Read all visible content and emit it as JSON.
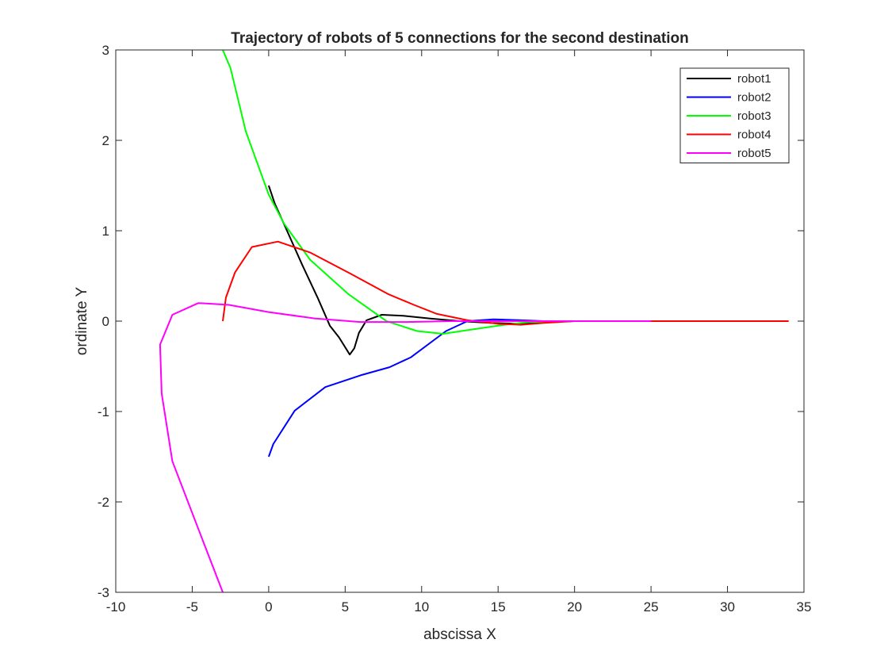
{
  "chart_data": {
    "type": "line",
    "title": "Trajectory of robots of 5 connections for the second destination",
    "xlabel": "abscissa X",
    "ylabel": "ordinate Y",
    "xlim": [
      -10,
      35
    ],
    "ylim": [
      -3,
      3
    ],
    "xticks": [
      "-10",
      "-5",
      "0",
      "5",
      "10",
      "15",
      "20",
      "25",
      "30",
      "35"
    ],
    "yticks": [
      "-3",
      "-2",
      "-1",
      "0",
      "1",
      "2",
      "3"
    ],
    "grid": false,
    "legend_position": "top-right",
    "series": [
      {
        "name": "robot1",
        "color": "#000000",
        "points": [
          [
            0.0,
            1.5
          ],
          [
            0.4,
            1.3
          ],
          [
            1.2,
            1.0
          ],
          [
            2.2,
            0.62
          ],
          [
            3.2,
            0.26
          ],
          [
            4.0,
            -0.05
          ],
          [
            4.6,
            -0.18
          ],
          [
            5.3,
            -0.37
          ],
          [
            5.6,
            -0.3
          ],
          [
            5.9,
            -0.13
          ],
          [
            6.4,
            0.01
          ],
          [
            7.4,
            0.07
          ],
          [
            8.8,
            0.06
          ],
          [
            10.5,
            0.03
          ],
          [
            12.5,
            0.0
          ],
          [
            14.5,
            -0.02
          ],
          [
            16.5,
            -0.03
          ],
          [
            18.0,
            -0.01
          ],
          [
            20.0,
            0.0
          ]
        ]
      },
      {
        "name": "robot2",
        "color": "#0000ff",
        "points": [
          [
            0.0,
            -1.5
          ],
          [
            0.3,
            -1.36
          ],
          [
            1.7,
            -0.99
          ],
          [
            3.7,
            -0.73
          ],
          [
            6.0,
            -0.6
          ],
          [
            7.9,
            -0.51
          ],
          [
            9.3,
            -0.4
          ],
          [
            11.6,
            -0.11
          ],
          [
            13.0,
            0.0
          ],
          [
            14.7,
            0.02
          ],
          [
            16.5,
            0.01
          ],
          [
            18.0,
            0.0
          ],
          [
            22.0,
            0.0
          ]
        ]
      },
      {
        "name": "robot3",
        "color": "#00ff00",
        "points": [
          [
            -3.0,
            3.0
          ],
          [
            -2.5,
            2.8
          ],
          [
            -1.5,
            2.1
          ],
          [
            0.0,
            1.4
          ],
          [
            1.0,
            1.08
          ],
          [
            2.7,
            0.68
          ],
          [
            5.2,
            0.3
          ],
          [
            7.7,
            0.0
          ],
          [
            9.7,
            -0.11
          ],
          [
            11.4,
            -0.14
          ],
          [
            13.0,
            -0.1
          ],
          [
            15.0,
            -0.05
          ],
          [
            17.0,
            -0.01
          ],
          [
            20.0,
            0.0
          ],
          [
            25.0,
            0.0
          ]
        ]
      },
      {
        "name": "robot4",
        "color": "#ff0000",
        "points": [
          [
            -3.0,
            0.0
          ],
          [
            -2.8,
            0.26
          ],
          [
            -2.2,
            0.54
          ],
          [
            -1.1,
            0.82
          ],
          [
            0.6,
            0.88
          ],
          [
            2.7,
            0.76
          ],
          [
            5.3,
            0.53
          ],
          [
            7.8,
            0.3
          ],
          [
            9.5,
            0.18
          ],
          [
            11.0,
            0.08
          ],
          [
            13.0,
            0.01
          ],
          [
            15.0,
            -0.03
          ],
          [
            16.5,
            -0.04
          ],
          [
            18.0,
            -0.02
          ],
          [
            20.0,
            0.0
          ],
          [
            25.0,
            0.0
          ],
          [
            30.0,
            0.0
          ],
          [
            34.0,
            0.0
          ]
        ]
      },
      {
        "name": "robot5",
        "color": "#ff00ff",
        "points": [
          [
            -3.0,
            -3.0
          ],
          [
            -4.6,
            -2.3
          ],
          [
            -6.3,
            -1.55
          ],
          [
            -7.0,
            -0.8
          ],
          [
            -7.1,
            -0.26
          ],
          [
            -6.3,
            0.07
          ],
          [
            -4.6,
            0.2
          ],
          [
            -2.6,
            0.18
          ],
          [
            0.0,
            0.1
          ],
          [
            3.0,
            0.03
          ],
          [
            6.0,
            -0.01
          ],
          [
            9.0,
            -0.01
          ],
          [
            12.0,
            0.0
          ],
          [
            18.0,
            0.0
          ],
          [
            25.0,
            0.0
          ]
        ]
      }
    ]
  }
}
